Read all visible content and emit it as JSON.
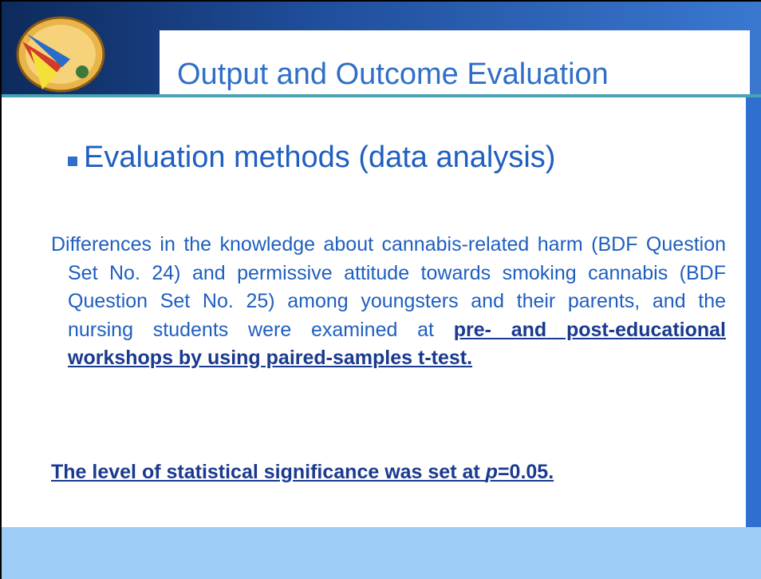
{
  "header": {
    "title": "Output and Outcome Evaluation"
  },
  "bullet": "Evaluation methods (data analysis)",
  "paragraph": {
    "text": "Differences in the knowledge about cannabis-related harm (BDF Question Set No. 24) and permissive attitude towards smoking cannabis (BDF Question Set No. 25) among youngsters and their parents, and the nursing students were examined at ",
    "emphasis": "pre- and post-educational workshops by using paired-samples t-test."
  },
  "significance": {
    "text": "The level of statistical significance was set at ",
    "symbol": "p",
    "value": "=0.05."
  }
}
